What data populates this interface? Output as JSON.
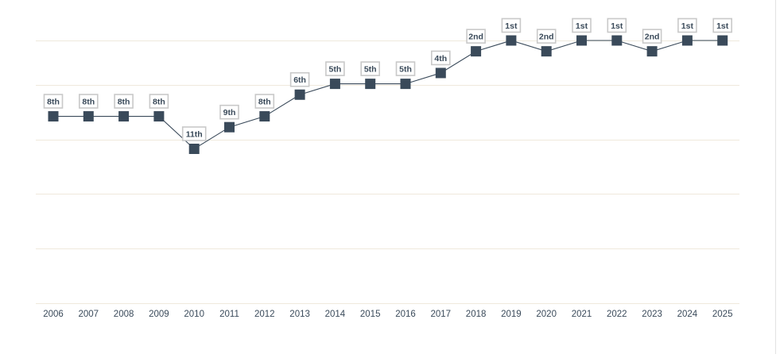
{
  "chart_data": {
    "type": "line",
    "title": "",
    "xlabel": "",
    "ylabel": "",
    "x": [
      "2006",
      "2007",
      "2008",
      "2009",
      "2010",
      "2011",
      "2012",
      "2013",
      "2014",
      "2015",
      "2016",
      "2017",
      "2018",
      "2019",
      "2020",
      "2021",
      "2022",
      "2023",
      "2024",
      "2025"
    ],
    "series": [
      {
        "values": [
          8,
          8,
          8,
          8,
          11,
          9,
          8,
          6,
          5,
          5,
          5,
          4,
          2,
          1,
          2,
          1,
          1,
          2,
          1,
          1
        ],
        "labels": [
          "8th",
          "8th",
          "8th",
          "8th",
          "11th",
          "9th",
          "8th",
          "6th",
          "5th",
          "5th",
          "5th",
          "4th",
          "2nd",
          "1st",
          "2nd",
          "1st",
          "1st",
          "2nd",
          "1st",
          "1st"
        ]
      }
    ],
    "y_axis": "inverted rank",
    "y_visible": false,
    "grid": true,
    "colors": {
      "line": "#3a4a5a",
      "marker": "#3a4a5a",
      "label_border": "#c9c9c9",
      "label_text": "#3a4a5a",
      "grid": "#efe9dc",
      "axis_text": "#3a4a5a"
    }
  }
}
